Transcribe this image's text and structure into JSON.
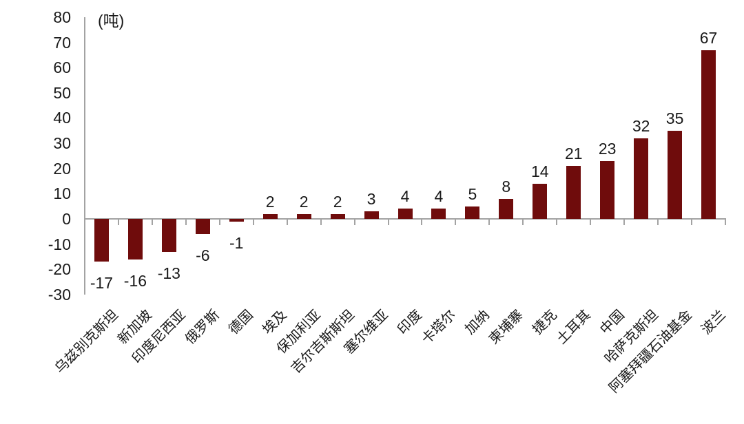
{
  "chart_data": {
    "type": "bar",
    "title": "",
    "unit_label": "(吨)",
    "categories": [
      "乌兹别克斯坦",
      "新加坡",
      "印度尼西亚",
      "俄罗斯",
      "德国",
      "埃及",
      "保加利亚",
      "吉尔吉斯斯坦",
      "塞尔维亚",
      "印度",
      "卡塔尔",
      "加纳",
      "柬埔寨",
      "捷克",
      "土耳其",
      "中国",
      "哈萨克斯坦",
      "阿塞拜疆石油基金",
      "波兰"
    ],
    "values": [
      -17,
      -16,
      -13,
      -6,
      -1,
      2,
      2,
      2,
      3,
      4,
      4,
      5,
      8,
      14,
      21,
      23,
      32,
      35,
      67
    ],
    "data_labels": [
      "-17",
      "-16",
      "-13",
      "-6",
      "-1",
      "2",
      "2",
      "2",
      "3",
      "4",
      "4",
      "5",
      "8",
      "14",
      "21",
      "23",
      "32",
      "35",
      "67"
    ],
    "xlabel": "",
    "ylabel": "",
    "yticks": [
      80,
      70,
      60,
      50,
      40,
      30,
      20,
      10,
      0,
      -10,
      -20,
      -30
    ],
    "ylim": [
      -30,
      80
    ],
    "grid": false,
    "legend_position": "none",
    "x_label_rotation_deg": 45,
    "colors": {
      "bar": "#6F0C0C",
      "axis": "#A3A3A3",
      "text": "#1A1A1A"
    }
  }
}
